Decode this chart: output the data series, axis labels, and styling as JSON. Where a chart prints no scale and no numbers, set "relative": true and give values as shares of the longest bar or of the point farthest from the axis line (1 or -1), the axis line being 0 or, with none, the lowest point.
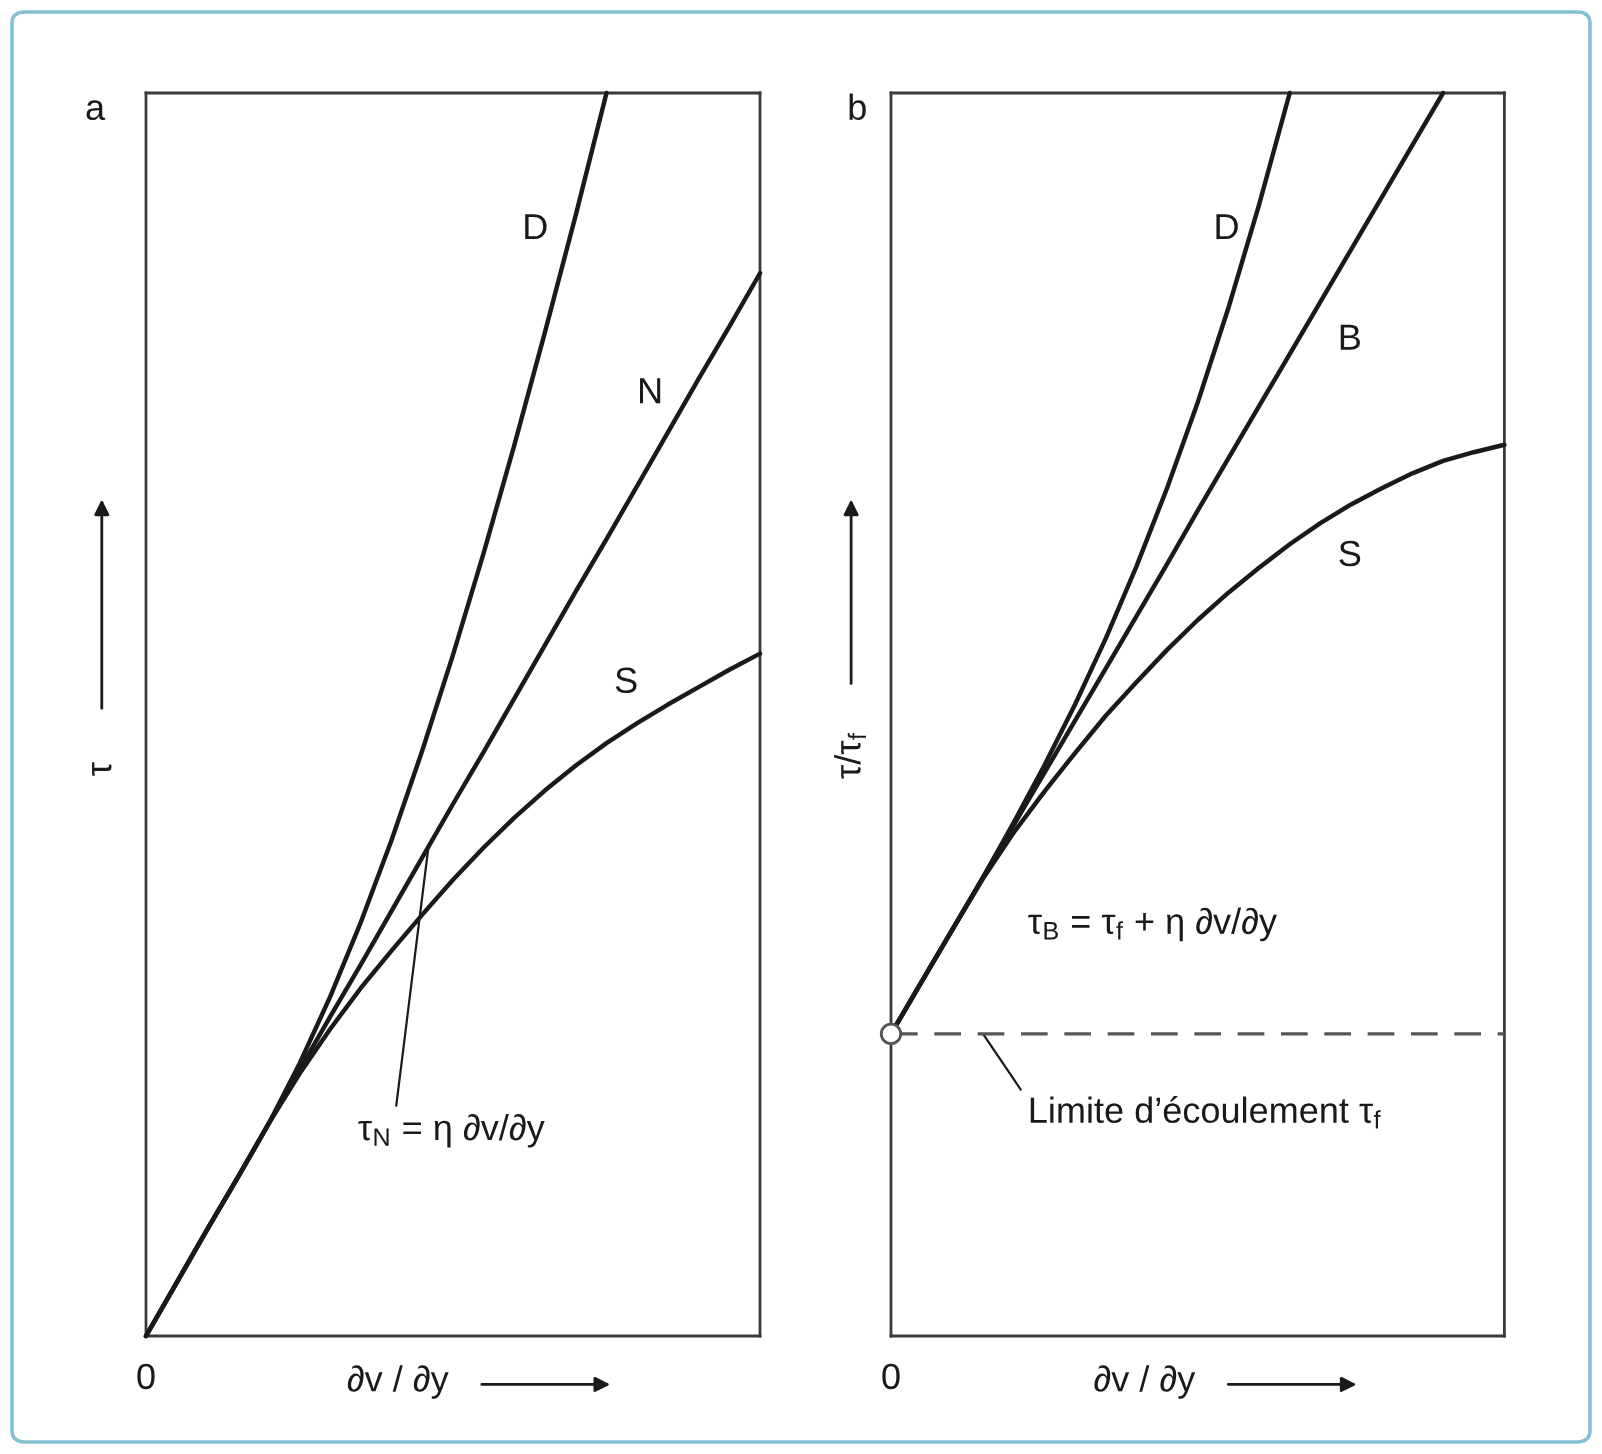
{
  "chart_data": [
    {
      "type": "line",
      "title": "a",
      "xlabel": "∂v / ∂y",
      "ylabel": "τ",
      "relative": true,
      "line_style": "solid",
      "categories": [
        null,
        null,
        null,
        null,
        null,
        null,
        null,
        null,
        null,
        null,
        null,
        null,
        null,
        null,
        null,
        null,
        null,
        null,
        null,
        null,
        null
      ],
      "series": [
        {
          "name": "D",
          "color": "#1a1a1a",
          "values": [
            0,
            0.043,
            0.086,
            0.128,
            0.171,
            0.219,
            0.273,
            0.333,
            0.399,
            0.471,
            0.548,
            0.63,
            0.717,
            0.808,
            0.902,
            1.0,
            null,
            null,
            null,
            null,
            null
          ]
        },
        {
          "name": "N",
          "color": "#1a1a1a",
          "values": [
            0,
            0.043,
            0.086,
            0.128,
            0.171,
            0.214,
            0.257,
            0.299,
            0.342,
            0.385,
            0.428,
            0.47,
            0.513,
            0.556,
            0.599,
            0.641,
            0.684,
            0.727,
            0.77,
            0.812,
            0.855
          ]
        },
        {
          "name": "S",
          "color": "#1a1a1a",
          "values": [
            0,
            0.043,
            0.086,
            0.128,
            0.171,
            0.211,
            0.247,
            0.28,
            0.31,
            0.339,
            0.367,
            0.393,
            0.417,
            0.439,
            0.459,
            0.477,
            0.493,
            0.508,
            0.522,
            0.536,
            0.549
          ]
        }
      ],
      "annotations": [
        "0",
        "τ$_{N}$ = η ∂v/∂y"
      ]
    },
    {
      "type": "line",
      "title": "b",
      "xlabel": "∂v / ∂y",
      "ylabel": "τ/τ$_{f}$",
      "relative": true,
      "line_style": "solid",
      "categories": [
        null,
        null,
        null,
        null,
        null,
        null,
        null,
        null,
        null,
        null,
        null,
        null,
        null,
        null,
        null,
        null,
        null,
        null,
        null,
        null,
        null
      ],
      "series": [
        {
          "name": "D",
          "color": "#1a1a1a",
          "values": [
            0.243,
            0.285,
            0.327,
            0.369,
            0.413,
            0.459,
            0.508,
            0.561,
            0.619,
            0.682,
            0.751,
            0.827,
            0.91,
            1.0,
            null,
            null,
            null,
            null,
            null,
            null,
            null
          ]
        },
        {
          "name": "B",
          "color": "#1a1a1a",
          "values": [
            0.243,
            0.285,
            0.327,
            0.369,
            0.411,
            0.453,
            0.495,
            0.537,
            0.579,
            0.621,
            0.664,
            0.706,
            0.748,
            0.79,
            0.832,
            0.874,
            0.916,
            0.958,
            1.0,
            null,
            null
          ]
        },
        {
          "name": "S",
          "color": "#1a1a1a",
          "values": [
            0.243,
            0.285,
            0.327,
            0.368,
            0.405,
            0.438,
            0.469,
            0.499,
            0.526,
            0.552,
            0.576,
            0.598,
            0.618,
            0.637,
            0.654,
            0.669,
            0.682,
            0.694,
            0.704,
            0.711,
            0.717
          ]
        }
      ],
      "ref_lines": [
        {
          "axis": "y",
          "value": 0.243,
          "color": "#555555",
          "line_style": "dashed"
        }
      ],
      "annotations": [
        "0",
        "τ$_{B}$ = τ$_{f}$ + η ∂v/∂y",
        {
          "text": "Limite d’écoulement τ$_{f}$",
          "y": 0.243
        }
      ]
    }
  ]
}
